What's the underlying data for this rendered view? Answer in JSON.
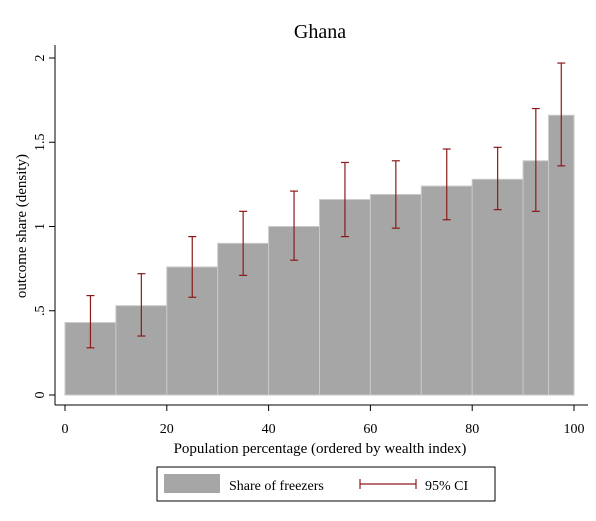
{
  "chart_data": {
    "type": "bar",
    "title": "Ghana",
    "xlabel": "Population percentage (ordered by wealth index)",
    "ylabel": "outcome share (density)",
    "xlim": [
      0,
      100
    ],
    "ylim": [
      0,
      2
    ],
    "x_ticks": [
      "0",
      "20",
      "40",
      "60",
      "80",
      "100"
    ],
    "y_ticks": [
      "0",
      ".5",
      "1",
      "1.5",
      "2"
    ],
    "bins": [
      {
        "x_start": 0,
        "x_end": 10,
        "x_mid": 5,
        "value": 0.43,
        "ci_low": 0.28,
        "ci_high": 0.59
      },
      {
        "x_start": 10,
        "x_end": 20,
        "x_mid": 15,
        "value": 0.53,
        "ci_low": 0.35,
        "ci_high": 0.72
      },
      {
        "x_start": 20,
        "x_end": 30,
        "x_mid": 25,
        "value": 0.76,
        "ci_low": 0.58,
        "ci_high": 0.94
      },
      {
        "x_start": 30,
        "x_end": 40,
        "x_mid": 35,
        "value": 0.9,
        "ci_low": 0.71,
        "ci_high": 1.09
      },
      {
        "x_start": 40,
        "x_end": 50,
        "x_mid": 45,
        "value": 1.0,
        "ci_low": 0.8,
        "ci_high": 1.21
      },
      {
        "x_start": 50,
        "x_end": 60,
        "x_mid": 55,
        "value": 1.16,
        "ci_low": 0.94,
        "ci_high": 1.38
      },
      {
        "x_start": 60,
        "x_end": 70,
        "x_mid": 65,
        "value": 1.19,
        "ci_low": 0.99,
        "ci_high": 1.39
      },
      {
        "x_start": 70,
        "x_end": 80,
        "x_mid": 75,
        "value": 1.24,
        "ci_low": 1.04,
        "ci_high": 1.46
      },
      {
        "x_start": 80,
        "x_end": 90,
        "x_mid": 85,
        "value": 1.28,
        "ci_low": 1.1,
        "ci_high": 1.47
      },
      {
        "x_start": 90,
        "x_end": 95,
        "x_mid": 92.5,
        "value": 1.39,
        "ci_low": 1.09,
        "ci_high": 1.7
      },
      {
        "x_start": 95,
        "x_end": 100,
        "x_mid": 97.5,
        "value": 1.66,
        "ci_low": 1.36,
        "ci_high": 1.97
      }
    ],
    "legend": {
      "placement": "bottom",
      "bar_label": "Share of freezers",
      "ci_label": "95% CI"
    },
    "colors": {
      "bar_fill": "#a6a6a6",
      "bar_edge": "#c9c9c9",
      "ci": "#8b1a1a",
      "axis": "#000000"
    },
    "grid": false
  }
}
